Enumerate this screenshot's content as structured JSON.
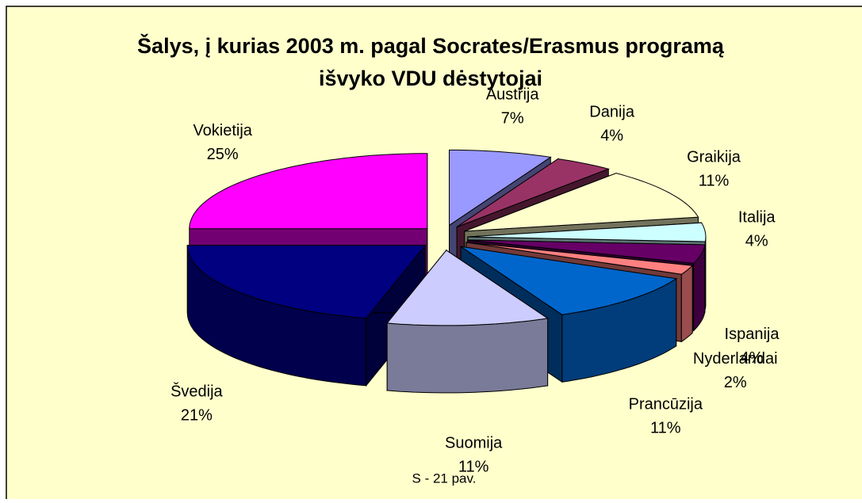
{
  "chart_data": {
    "type": "pie3d",
    "title": [
      "Šalys, į kurias 2003 m. pagal Socrates/Erasmus programą",
      "išvyko VDU dėstytojai"
    ],
    "categories": [
      "Austrija",
      "Danija",
      "Graikija",
      "Italija",
      "Ispanija",
      "Nyderlandai",
      "Prancūzija",
      "Suomija",
      "Švedija",
      "Vokietija"
    ],
    "values": [
      7,
      4,
      11,
      4,
      4,
      2,
      11,
      11,
      21,
      25
    ],
    "value_labels": [
      "7%",
      "4%",
      "11%",
      "4%",
      "4%",
      "2%",
      "11%",
      "11%",
      "21%",
      "25%"
    ],
    "colors": [
      "#9999ff",
      "#993366",
      "#ffffcc",
      "#ccffff",
      "#660066",
      "#ff8080",
      "#0066cc",
      "#ccccff",
      "#000080",
      "#ff00ff"
    ],
    "caption": "S - 21 pav."
  }
}
